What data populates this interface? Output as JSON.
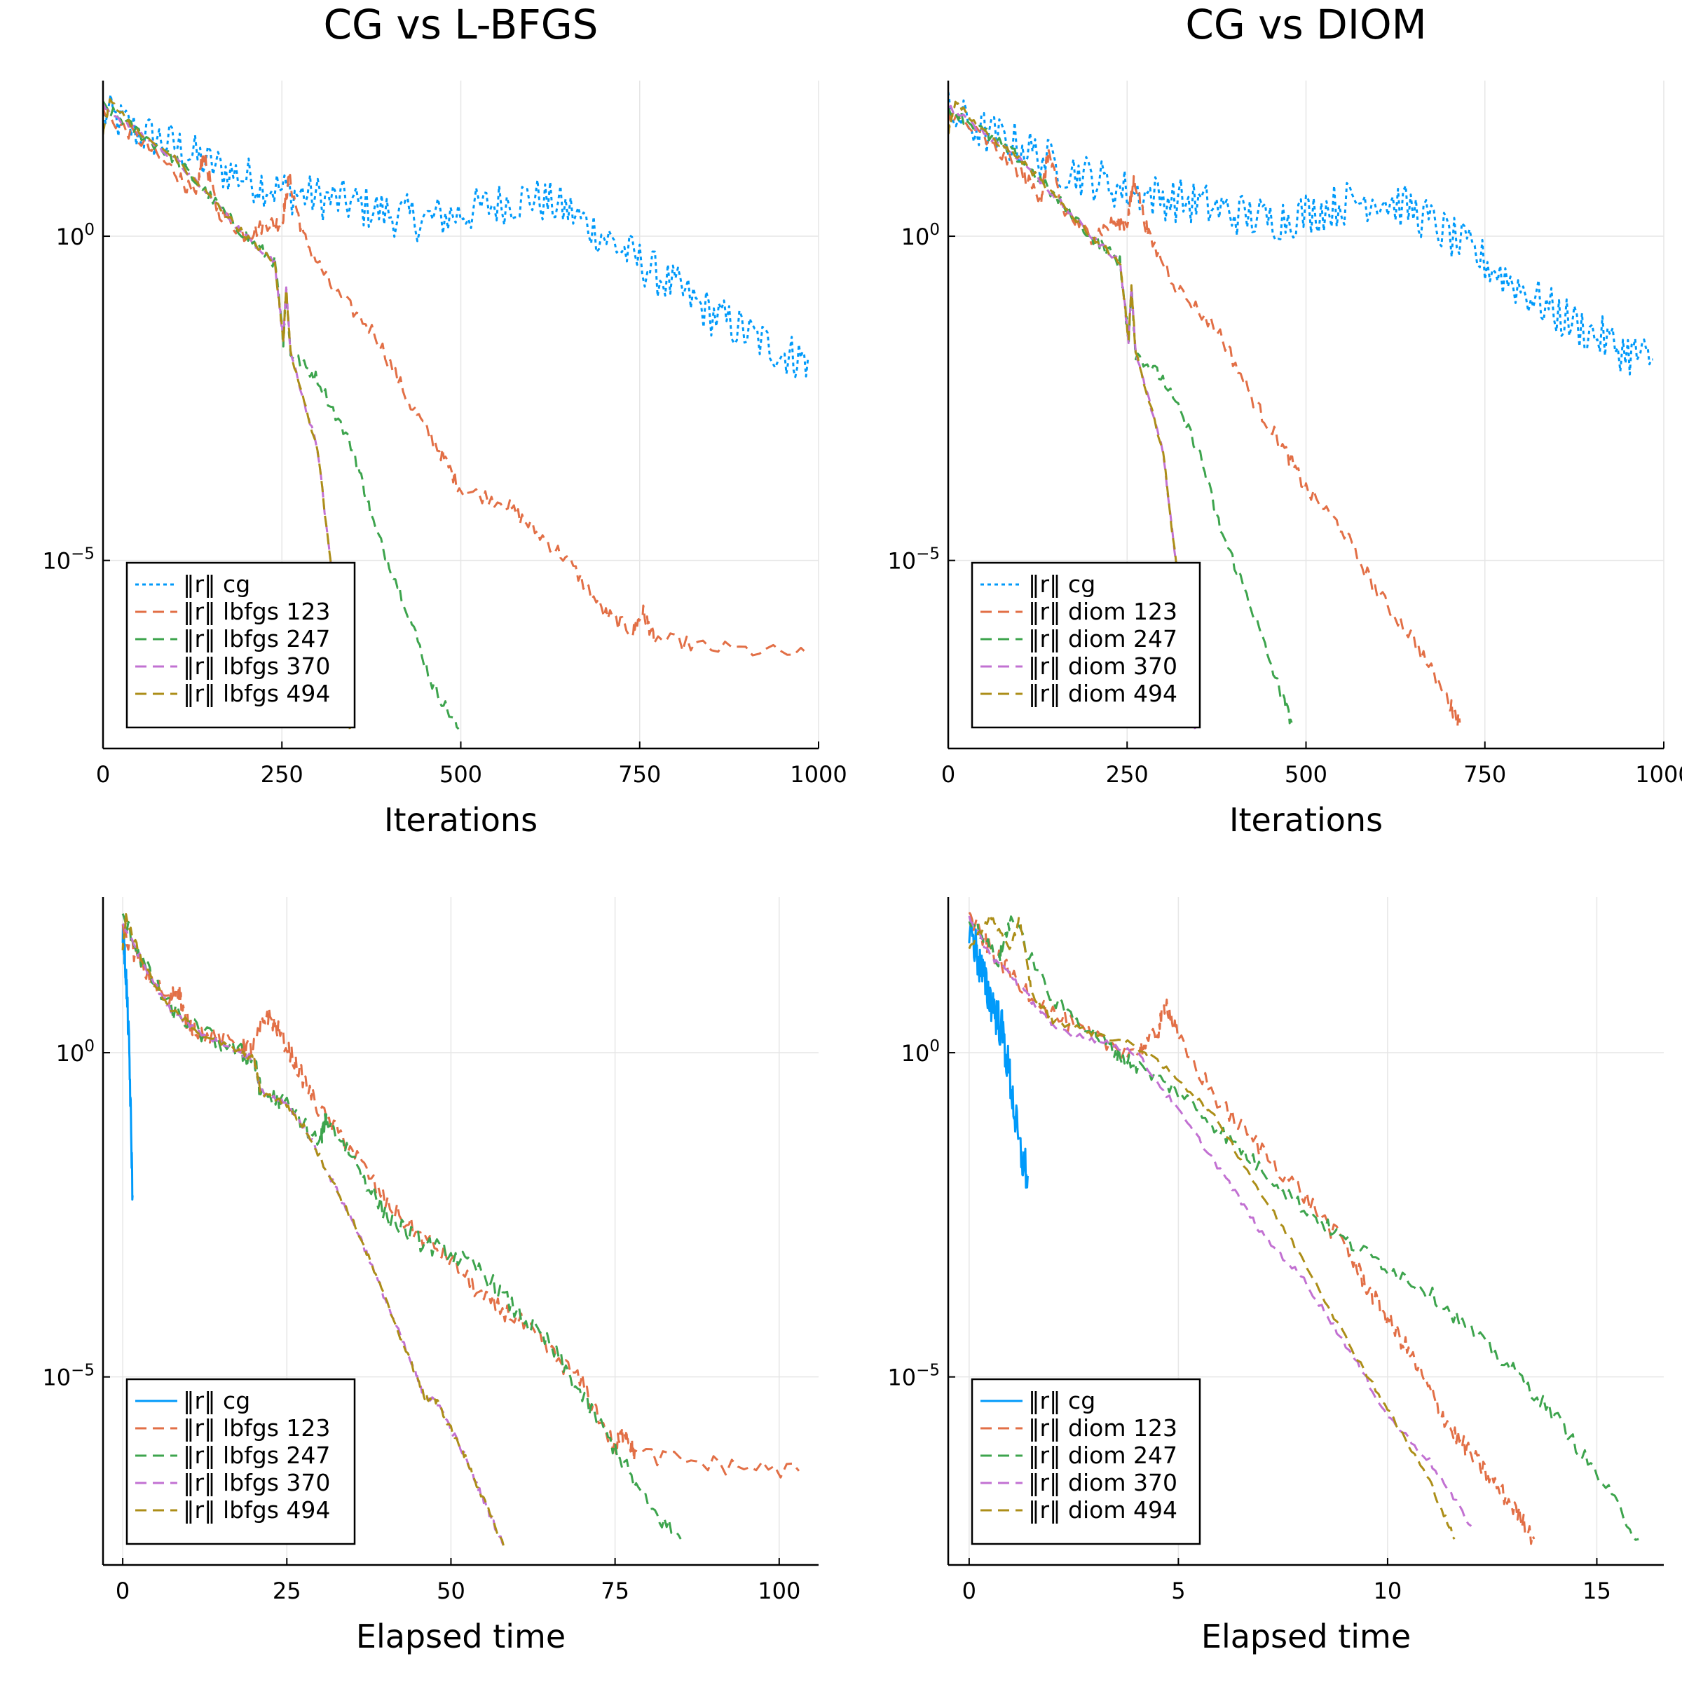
{
  "chart_data": [
    {
      "type": "line",
      "title": "CG vs L-BFGS",
      "xlabel": "Iterations",
      "ylabel": "",
      "yscale": "log",
      "xlim": [
        0,
        1000
      ],
      "ylim_exp": [
        -7.9,
        2.4
      ],
      "xticks": [
        "0",
        "250",
        "500",
        "750",
        "1000"
      ],
      "yticks": [
        {
          "exp": 0
        },
        {
          "exp": -5
        }
      ],
      "legend_position": "bottom-left",
      "grid": true,
      "series": [
        {
          "name": "‖r‖ cg",
          "color": "#009AFA",
          "dash": "dot",
          "x": [
            0,
            50,
            100,
            150,
            200,
            250,
            300,
            350,
            400,
            450,
            500,
            550,
            600,
            650,
            700,
            750,
            800,
            850,
            900,
            950,
            985
          ],
          "log10y": [
            1.9,
            1.6,
            1.4,
            1.1,
            0.9,
            0.7,
            0.6,
            0.5,
            0.35,
            0.25,
            0.35,
            0.5,
            0.6,
            0.4,
            0.0,
            -0.4,
            -0.8,
            -1.2,
            -1.5,
            -1.8,
            -1.9
          ],
          "noise": 0.35
        },
        {
          "name": "‖r‖ lbfgs 123",
          "color": "#E26F46",
          "dash": "dash",
          "x": [
            0,
            50,
            100,
            130,
            140,
            160,
            200,
            230,
            250,
            260,
            280,
            320,
            380,
            430,
            470,
            500,
            560,
            600,
            650,
            700,
            740,
            755,
            770,
            850,
            985
          ],
          "log10y": [
            1.9,
            1.5,
            1.0,
            0.6,
            1.3,
            0.4,
            0.0,
            0.2,
            0.2,
            0.9,
            0.0,
            -0.8,
            -1.5,
            -2.6,
            -3.3,
            -3.9,
            -4.1,
            -4.5,
            -5.0,
            -5.8,
            -6.1,
            -5.8,
            -6.2,
            -6.35,
            -6.45
          ],
          "noise": 0.12
        },
        {
          "name": "‖r‖ lbfgs 247",
          "color": "#3DA44D",
          "dash": "dash",
          "x": [
            0,
            50,
            100,
            150,
            200,
            240,
            252,
            256,
            262,
            300,
            350,
            380,
            420,
            460,
            497
          ],
          "log10y": [
            2.0,
            1.6,
            1.2,
            0.6,
            0.0,
            -0.4,
            -1.6,
            -0.8,
            -1.8,
            -2.2,
            -3.3,
            -4.5,
            -5.6,
            -6.9,
            -7.6
          ],
          "noise": 0.1
        },
        {
          "name": "‖r‖ lbfgs 370",
          "color": "#C271D2",
          "dash": "dash",
          "x": [
            0,
            50,
            100,
            150,
            200,
            240,
            252,
            256,
            262,
            300,
            345
          ],
          "log10y": [
            2.0,
            1.6,
            1.2,
            0.6,
            0.0,
            -0.4,
            -1.6,
            -0.8,
            -1.8,
            -3.3,
            -7.6
          ],
          "noise": 0.05
        },
        {
          "name": "‖r‖ lbfgs 494",
          "color": "#AC8E18",
          "dash": "dash",
          "x": [
            0,
            10,
            50,
            100,
            150,
            200,
            240,
            252,
            256,
            262,
            300,
            345
          ],
          "log10y": [
            1.6,
            2.1,
            1.6,
            1.2,
            0.6,
            0.0,
            -0.4,
            -1.6,
            -0.8,
            -1.8,
            -3.3,
            -7.6
          ],
          "noise": 0.05
        }
      ]
    },
    {
      "type": "line",
      "title": "CG vs DIOM",
      "xlabel": "Iterations",
      "ylabel": "",
      "yscale": "log",
      "xlim": [
        0,
        1000
      ],
      "ylim_exp": [
        -7.9,
        2.4
      ],
      "xticks": [
        "0",
        "250",
        "500",
        "750",
        "1000"
      ],
      "yticks": [
        {
          "exp": 0
        },
        {
          "exp": -5
        }
      ],
      "legend_position": "bottom-left",
      "grid": true,
      "series": [
        {
          "name": "‖r‖ cg",
          "color": "#009AFA",
          "dash": "dot",
          "x": [
            0,
            50,
            100,
            150,
            200,
            250,
            300,
            350,
            400,
            450,
            500,
            550,
            600,
            650,
            700,
            750,
            800,
            850,
            900,
            950,
            985
          ],
          "log10y": [
            1.9,
            1.6,
            1.4,
            1.1,
            0.9,
            0.7,
            0.6,
            0.5,
            0.35,
            0.25,
            0.35,
            0.5,
            0.6,
            0.4,
            0.0,
            -0.4,
            -0.8,
            -1.2,
            -1.5,
            -1.8,
            -1.9
          ],
          "noise": 0.35
        },
        {
          "name": "‖r‖ diom 123",
          "color": "#E26F46",
          "dash": "dash",
          "x": [
            0,
            50,
            100,
            130,
            140,
            160,
            200,
            230,
            250,
            260,
            280,
            320,
            380,
            430,
            470,
            500,
            550,
            600,
            650,
            700,
            715
          ],
          "log10y": [
            1.9,
            1.5,
            1.0,
            0.6,
            1.3,
            0.4,
            0.0,
            0.2,
            0.2,
            0.9,
            0.0,
            -0.8,
            -1.5,
            -2.6,
            -3.3,
            -3.9,
            -4.5,
            -5.5,
            -6.2,
            -7.2,
            -7.5
          ],
          "noise": 0.12
        },
        {
          "name": "‖r‖ diom 247",
          "color": "#3DA44D",
          "dash": "dash",
          "x": [
            0,
            50,
            100,
            150,
            200,
            240,
            252,
            256,
            262,
            300,
            350,
            380,
            420,
            460,
            480
          ],
          "log10y": [
            2.0,
            1.6,
            1.2,
            0.6,
            0.0,
            -0.4,
            -1.6,
            -0.8,
            -1.8,
            -2.2,
            -3.3,
            -4.5,
            -5.6,
            -6.9,
            -7.5
          ],
          "noise": 0.1
        },
        {
          "name": "‖r‖ diom 370",
          "color": "#C271D2",
          "dash": "dash",
          "x": [
            0,
            50,
            100,
            150,
            200,
            240,
            252,
            256,
            262,
            300,
            345
          ],
          "log10y": [
            2.0,
            1.6,
            1.2,
            0.6,
            0.0,
            -0.4,
            -1.6,
            -0.8,
            -1.8,
            -3.3,
            -7.6
          ],
          "noise": 0.05
        },
        {
          "name": "‖r‖ diom 494",
          "color": "#AC8E18",
          "dash": "dash",
          "x": [
            0,
            10,
            50,
            100,
            150,
            200,
            240,
            252,
            256,
            262,
            300,
            345
          ],
          "log10y": [
            1.6,
            2.1,
            1.6,
            1.2,
            0.6,
            0.0,
            -0.4,
            -1.6,
            -0.8,
            -1.8,
            -3.3,
            -7.6
          ],
          "noise": 0.05
        }
      ]
    },
    {
      "type": "line",
      "title": "",
      "xlabel": "Elapsed time",
      "ylabel": "",
      "yscale": "log",
      "xlim": [
        -3,
        106
      ],
      "ylim_exp": [
        -7.9,
        2.4
      ],
      "xticks": [
        "0",
        "25",
        "50",
        "75",
        "100"
      ],
      "yticks": [
        {
          "exp": 0
        },
        {
          "exp": -5
        }
      ],
      "legend_position": "bottom-left",
      "grid": true,
      "series": [
        {
          "name": "‖r‖ cg",
          "color": "#009AFA",
          "dash": "solid",
          "x": [
            0,
            0.5,
            1,
            1.5
          ],
          "log10y": [
            1.9,
            1.2,
            0.0,
            -2.2
          ],
          "noise": 0.25
        },
        {
          "name": "‖r‖ lbfgs 123",
          "color": "#E26F46",
          "dash": "dash",
          "x": [
            0,
            3,
            7,
            8.5,
            9.5,
            12,
            18,
            20,
            22,
            24,
            27,
            30,
            35,
            40,
            45,
            50,
            55,
            60,
            65,
            70,
            75,
            76.5,
            78,
            90,
            103
          ],
          "log10y": [
            1.9,
            1.3,
            0.8,
            1.0,
            0.5,
            0.3,
            0.1,
            0.1,
            0.6,
            0.3,
            -0.3,
            -0.9,
            -1.5,
            -2.3,
            -2.8,
            -3.2,
            -3.8,
            -4.1,
            -4.6,
            -5.1,
            -6.1,
            -5.8,
            -6.2,
            -6.35,
            -6.45
          ],
          "noise": 0.15
        },
        {
          "name": "‖r‖ lbfgs 247",
          "color": "#3DA44D",
          "dash": "dash",
          "x": [
            0,
            3,
            7,
            12,
            18,
            20,
            21,
            25,
            30,
            31,
            35,
            40,
            45,
            50,
            55,
            60,
            65,
            70,
            75,
            80,
            85
          ],
          "log10y": [
            2.1,
            1.4,
            0.7,
            0.3,
            0.0,
            -0.1,
            -0.6,
            -0.8,
            -1.4,
            -1.0,
            -1.6,
            -2.5,
            -2.9,
            -3.1,
            -3.4,
            -4.0,
            -4.5,
            -5.3,
            -6.1,
            -7.0,
            -7.5
          ],
          "noise": 0.15
        },
        {
          "name": "‖r‖ lbfgs 370",
          "color": "#C271D2",
          "dash": "dash",
          "x": [
            0,
            3,
            7,
            12,
            18,
            20,
            21,
            25,
            28,
            32,
            36,
            40,
            44,
            46,
            48,
            52,
            55,
            58
          ],
          "log10y": [
            2.0,
            1.4,
            0.7,
            0.3,
            0.0,
            -0.1,
            -0.6,
            -0.8,
            -1.2,
            -2.0,
            -2.8,
            -3.8,
            -4.8,
            -5.3,
            -5.4,
            -6.2,
            -6.9,
            -7.6
          ],
          "noise": 0.05
        },
        {
          "name": "‖r‖ lbfgs 494",
          "color": "#AC8E18",
          "dash": "dash",
          "x": [
            0,
            0.5,
            3,
            7,
            12,
            18,
            20,
            21,
            25,
            28,
            32,
            36,
            40,
            44,
            46,
            48,
            52,
            55,
            58
          ],
          "log10y": [
            1.6,
            2.1,
            1.4,
            0.7,
            0.3,
            0.0,
            -0.1,
            -0.6,
            -0.8,
            -1.2,
            -2.0,
            -2.8,
            -3.8,
            -4.8,
            -5.3,
            -5.4,
            -6.2,
            -6.9,
            -7.6
          ],
          "noise": 0.05
        }
      ]
    },
    {
      "type": "line",
      "title": "",
      "xlabel": "Elapsed time",
      "ylabel": "",
      "yscale": "log",
      "xlim": [
        -0.5,
        16.6
      ],
      "ylim_exp": [
        -7.9,
        2.4
      ],
      "xticks": [
        "0",
        "5",
        "10",
        "15"
      ],
      "yticks": [
        {
          "exp": 0
        },
        {
          "exp": -5
        }
      ],
      "legend_position": "bottom-left",
      "grid": true,
      "series": [
        {
          "name": "‖r‖ cg",
          "color": "#009AFA",
          "dash": "solid",
          "x": [
            0,
            0.2,
            0.4,
            0.6,
            0.8,
            1.0,
            1.2,
            1.4
          ],
          "log10y": [
            2.0,
            1.5,
            1.0,
            0.7,
            0.3,
            -0.5,
            -1.5,
            -1.9
          ],
          "noise": 0.35
        },
        {
          "name": "‖r‖ diom 123",
          "color": "#E26F46",
          "dash": "dash",
          "x": [
            0,
            0.5,
            1.0,
            2.0,
            3.0,
            4.0,
            4.5,
            4.7,
            5.0,
            6.0,
            7.0,
            8.0,
            9.0,
            9.5,
            10.0,
            10.5,
            11.0,
            11.5,
            12.0,
            12.5,
            13.0,
            13.5
          ],
          "log10y": [
            2.1,
            1.6,
            1.2,
            0.6,
            0.2,
            0.0,
            0.3,
            0.8,
            0.2,
            -0.8,
            -1.5,
            -2.2,
            -3.0,
            -3.6,
            -4.1,
            -4.6,
            -5.2,
            -5.8,
            -6.2,
            -6.6,
            -7.0,
            -7.5
          ],
          "noise": 0.15
        },
        {
          "name": "‖r‖ diom 247",
          "color": "#3DA44D",
          "dash": "dash",
          "x": [
            0,
            0.7,
            1.0,
            2.0,
            3.0,
            3.5,
            4.0,
            5.0,
            6.0,
            7.0,
            8.0,
            9.0,
            10.0,
            11.0,
            12.0,
            13.0,
            14.0,
            15.0,
            16.0
          ],
          "log10y": [
            2.1,
            1.4,
            2.1,
            0.8,
            0.3,
            0.0,
            -0.2,
            -0.6,
            -1.2,
            -1.8,
            -2.4,
            -2.9,
            -3.3,
            -3.7,
            -4.3,
            -4.9,
            -5.6,
            -6.5,
            -7.5
          ],
          "noise": 0.12
        },
        {
          "name": "‖r‖ diom 370",
          "color": "#C271D2",
          "dash": "dash",
          "x": [
            0,
            0.5,
            1.0,
            1.5,
            2.0,
            3.0,
            4.0,
            5.0,
            6.0,
            7.0,
            8.0,
            9.0,
            10.0,
            11.0,
            12.0
          ],
          "log10y": [
            2.1,
            1.5,
            1.2,
            0.8,
            0.4,
            0.2,
            0.0,
            -0.9,
            -1.8,
            -2.8,
            -3.5,
            -4.5,
            -5.6,
            -6.3,
            -7.3
          ],
          "noise": 0.05
        },
        {
          "name": "‖r‖ diom 494",
          "color": "#AC8E18",
          "dash": "dash",
          "x": [
            0,
            0.5,
            1.0,
            1.2,
            1.5,
            2.0,
            3.0,
            4.0,
            5.0,
            6.0,
            7.0,
            8.0,
            9.0,
            10.0,
            11.0,
            11.6
          ],
          "log10y": [
            1.6,
            2.1,
            1.6,
            2.1,
            0.9,
            0.5,
            0.3,
            0.1,
            -0.4,
            -1.1,
            -2.2,
            -3.2,
            -4.4,
            -5.5,
            -6.6,
            -7.5
          ],
          "noise": 0.05
        }
      ]
    }
  ]
}
